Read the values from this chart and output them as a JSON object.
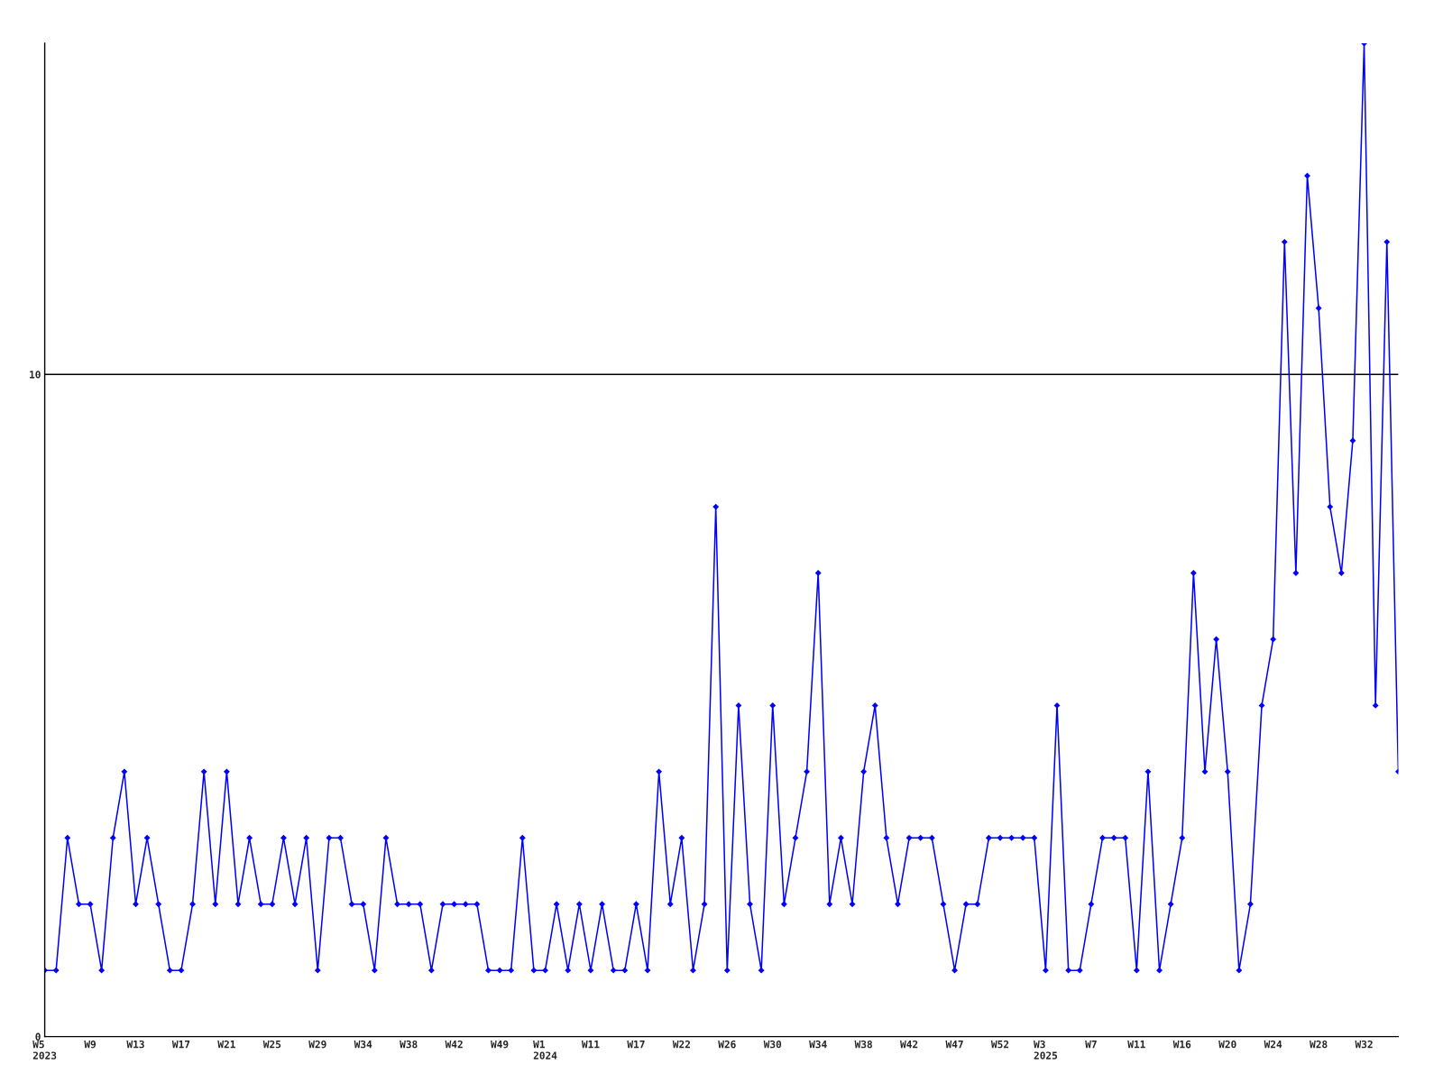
{
  "chart_data": {
    "type": "line",
    "categories": [
      "W5\n2023",
      null,
      null,
      null,
      "W9",
      null,
      null,
      null,
      "W13",
      null,
      null,
      null,
      "W17",
      null,
      null,
      null,
      "W21",
      null,
      null,
      null,
      "W25",
      null,
      null,
      null,
      "W29",
      null,
      null,
      null,
      "W34",
      null,
      null,
      null,
      "W38",
      null,
      null,
      null,
      "W42",
      null,
      null,
      null,
      "W49",
      null,
      null,
      null,
      "W1\n2024",
      null,
      null,
      null,
      "W11",
      null,
      null,
      null,
      "W17",
      null,
      null,
      null,
      "W22",
      null,
      null,
      null,
      "W26",
      null,
      null,
      null,
      "W30",
      null,
      null,
      null,
      "W34",
      null,
      null,
      null,
      "W38",
      null,
      null,
      null,
      "W42",
      null,
      null,
      null,
      "W47",
      null,
      null,
      null,
      "W52",
      null,
      null,
      null,
      "W3\n2025",
      null,
      null,
      null,
      "W7",
      null,
      null,
      null,
      "W11",
      null,
      null,
      null,
      "W16",
      null,
      null,
      null,
      "W20",
      null,
      null,
      null,
      "W24",
      null,
      null,
      null,
      "W28",
      null,
      null,
      null,
      "W32",
      null,
      null,
      null
    ],
    "series": [
      {
        "color": "#0000ff",
        "values": [
          1,
          1,
          3,
          2,
          2,
          1,
          3,
          4,
          2,
          3,
          2,
          1,
          1,
          2,
          4,
          2,
          4,
          2,
          3,
          2,
          2,
          3,
          2,
          3,
          1,
          3,
          3,
          2,
          2,
          1,
          3,
          2,
          2,
          2,
          1,
          2,
          2,
          2,
          2,
          1,
          1,
          1,
          3,
          1,
          1,
          2,
          1,
          2,
          1,
          2,
          1,
          1,
          2,
          1,
          4,
          2,
          3,
          1,
          2,
          8,
          1,
          5,
          2,
          1,
          5,
          2,
          3,
          4,
          7,
          2,
          3,
          2,
          4,
          5,
          3,
          2,
          3,
          3,
          3,
          2,
          1,
          2,
          2,
          3,
          3,
          3,
          3,
          3,
          1,
          5,
          1,
          1,
          2,
          3,
          3,
          3,
          1,
          4,
          1,
          2,
          3,
          7,
          4,
          6,
          4,
          1,
          2,
          5,
          6,
          12,
          7,
          13,
          11,
          8,
          7,
          9,
          15,
          5,
          12,
          4
        ]
      }
    ],
    "ylim": [
      0,
      15
    ],
    "yticks": [
      0,
      10
    ],
    "grid": "y",
    "marker": "diamond",
    "line_style": "solid"
  }
}
